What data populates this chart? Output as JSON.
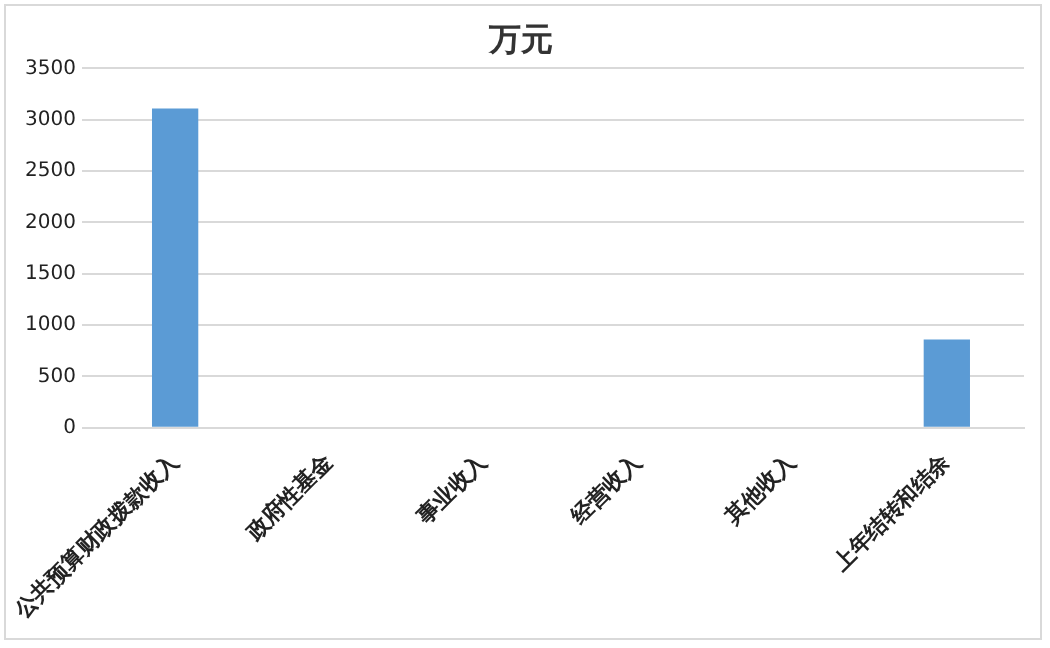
{
  "chart_data": {
    "type": "bar",
    "title": "万元",
    "categories": [
      "公共预算财政拨款收入",
      "政府性基金",
      "事业收入",
      "经营收入",
      "其他收入",
      "上年结转和结余"
    ],
    "values": [
      3110,
      0,
      0,
      0,
      0,
      860
    ],
    "color": "#5b9bd5",
    "ylim": [
      0,
      3500
    ],
    "yticks": [
      0,
      500,
      1000,
      1500,
      2000,
      2500,
      3000,
      3500
    ],
    "grid": "y"
  }
}
